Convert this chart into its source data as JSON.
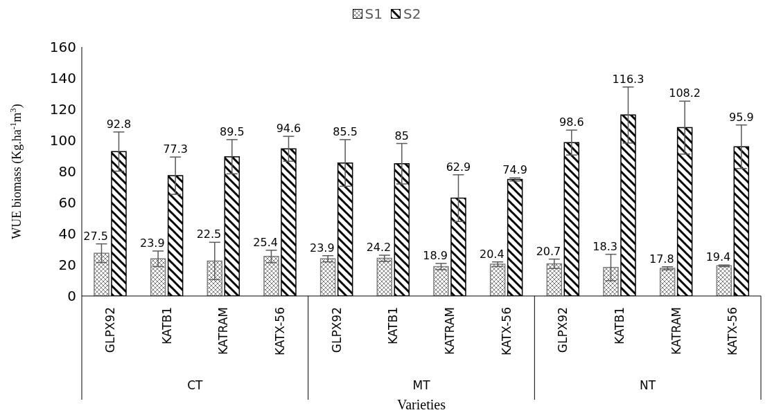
{
  "chart_data": {
    "type": "bar",
    "xlabel": "Varieties",
    "ylabel": "WUE biomass (Kg.ha$^{-1}$m$^{3}$)",
    "categories": [
      "GLPX92",
      "KATB1",
      "KATRAM",
      "KATX-56",
      "GLPX92",
      "KATB1",
      "KATRAM",
      "KATX-56",
      "GLPX92",
      "KATB1",
      "KATRAM",
      "KATX-56"
    ],
    "annotations": [
      "CT",
      "MT",
      "NT"
    ],
    "series": [
      {
        "name": "S1",
        "color": "#7f7f7f",
        "values": [
          27.5,
          23.9,
          22.5,
          25.4,
          23.9,
          24.2,
          18.9,
          20.4,
          20.7,
          18.3,
          17.8,
          19.4
        ],
        "errors": [
          6,
          5,
          12,
          4,
          2,
          2,
          2,
          1.5,
          3,
          8.5,
          1,
          0.5
        ]
      },
      {
        "name": "S2",
        "color": "#000000",
        "values": [
          92.8,
          77.3,
          89.5,
          94.6,
          85.5,
          85,
          62.9,
          74.9,
          98.6,
          116.3,
          108.2,
          95.9
        ],
        "errors": [
          12.6,
          12,
          11,
          8,
          15,
          13,
          15,
          1,
          8,
          18,
          17,
          14
        ]
      }
    ],
    "ylim": [
      0,
      160
    ],
    "yticks": [
      0,
      20,
      40,
      60,
      80,
      100,
      120,
      140,
      160
    ],
    "grid": false,
    "legend": "top",
    "data_labels": true
  }
}
